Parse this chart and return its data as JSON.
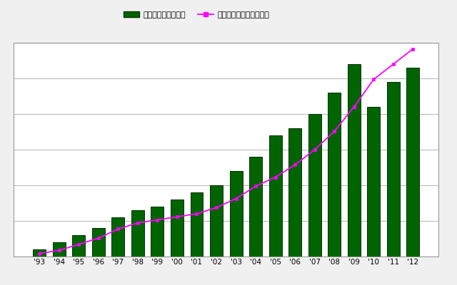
{
  "years": [
    "'93",
    "'94",
    "'95",
    "'96",
    "'97",
    "'98",
    "'99",
    "'00",
    "'01",
    "'02",
    "'03",
    "'04",
    "'05",
    "'06",
    "'07",
    "'08",
    "'09",
    "'10",
    "'11",
    "'12"
  ],
  "bar_values": [
    1,
    2,
    3,
    4,
    5.5,
    6.5,
    7,
    8,
    9,
    10,
    12,
    14,
    17,
    18,
    20,
    23,
    27,
    21,
    24.5,
    26.5
  ],
  "line_values": [
    0.5,
    1.0,
    2.0,
    3.0,
    4.5,
    5.5,
    6.0,
    6.5,
    7.0,
    8.0,
    9.5,
    11.5,
    13.0,
    15.0,
    17.5,
    20.5,
    24.5,
    29.0,
    31.5,
    34.0
  ],
  "bar_color": "#006400",
  "bar_edge_color": "#003300",
  "line_color": "#FF00FF",
  "line_marker": "s",
  "legend_bar_label": "累積助成件数（件）",
  "legend_line_label": "累積助成金金額（億円）",
  "ylim": [
    0,
    30
  ],
  "ylim_right": [
    0,
    35
  ],
  "yticks": [
    0,
    5,
    10,
    15,
    20,
    25,
    30
  ],
  "background_color": "#f0f0f0",
  "plot_bg_color": "#ffffff",
  "grid_color": "#bbbbbb",
  "fig_width": 6.4,
  "fig_height": 4.0,
  "dpi": 100
}
